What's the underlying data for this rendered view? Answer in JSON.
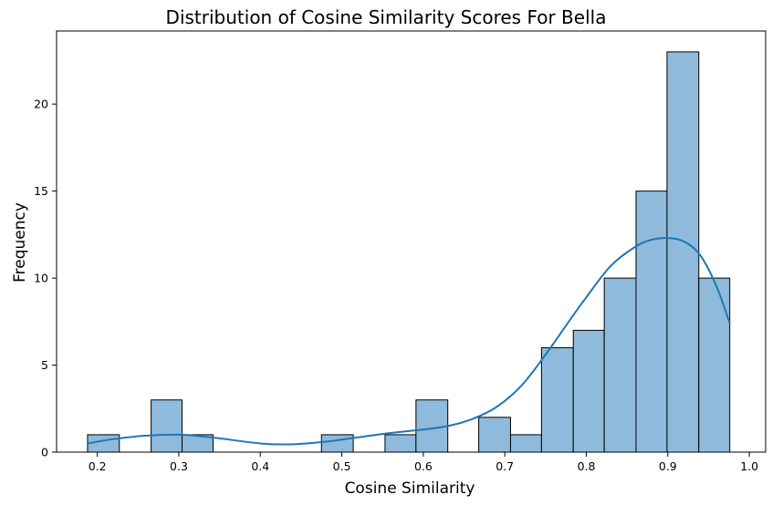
{
  "chart_data": {
    "type": "bar",
    "title": "Distribution of Cosine Similarity Scores For Bella",
    "xlabel": "Cosine Similarity",
    "ylabel": "Frequency",
    "xlim": [
      0.15,
      1.02
    ],
    "ylim": [
      0,
      24.2
    ],
    "xticks": [
      0.2,
      0.3,
      0.4,
      0.5,
      0.6,
      0.7,
      0.8,
      0.9,
      1.0
    ],
    "xtick_labels": [
      "0.2",
      "0.3",
      "0.4",
      "0.5",
      "0.6",
      "0.7",
      "0.8",
      "0.9",
      "1.0"
    ],
    "yticks": [
      0,
      5,
      10,
      15,
      20
    ],
    "ytick_labels": [
      "0",
      "5",
      "10",
      "15",
      "20"
    ],
    "bins": [
      {
        "x0": 0.188,
        "x1": 0.227,
        "count": 1
      },
      {
        "x0": 0.266,
        "x1": 0.304,
        "count": 3
      },
      {
        "x0": 0.304,
        "x1": 0.342,
        "count": 1
      },
      {
        "x0": 0.475,
        "x1": 0.514,
        "count": 1
      },
      {
        "x0": 0.553,
        "x1": 0.591,
        "count": 1
      },
      {
        "x0": 0.591,
        "x1": 0.63,
        "count": 3
      },
      {
        "x0": 0.668,
        "x1": 0.707,
        "count": 2
      },
      {
        "x0": 0.707,
        "x1": 0.745,
        "count": 1
      },
      {
        "x0": 0.745,
        "x1": 0.784,
        "count": 6
      },
      {
        "x0": 0.784,
        "x1": 0.822,
        "count": 7
      },
      {
        "x0": 0.822,
        "x1": 0.861,
        "count": 10
      },
      {
        "x0": 0.861,
        "x1": 0.899,
        "count": 15
      },
      {
        "x0": 0.899,
        "x1": 0.938,
        "count": 23
      },
      {
        "x0": 0.938,
        "x1": 0.976,
        "count": 10
      }
    ],
    "kde": {
      "x": [
        0.188,
        0.22,
        0.26,
        0.3,
        0.34,
        0.4,
        0.44,
        0.48,
        0.52,
        0.56,
        0.6,
        0.63,
        0.66,
        0.69,
        0.72,
        0.75,
        0.78,
        0.8,
        0.83,
        0.86,
        0.88,
        0.9,
        0.92,
        0.94,
        0.96,
        0.976
      ],
      "y": [
        0.5,
        0.75,
        0.95,
        1.0,
        0.85,
        0.5,
        0.45,
        0.6,
        0.85,
        1.1,
        1.3,
        1.5,
        1.9,
        2.6,
        3.8,
        5.6,
        7.6,
        8.9,
        10.7,
        11.8,
        12.2,
        12.3,
        12.1,
        11.3,
        9.5,
        7.4
      ]
    },
    "bar_color": "#8fbadb",
    "bar_edge_color": "#000000",
    "kde_color": "#1f77b4",
    "grid": false
  }
}
